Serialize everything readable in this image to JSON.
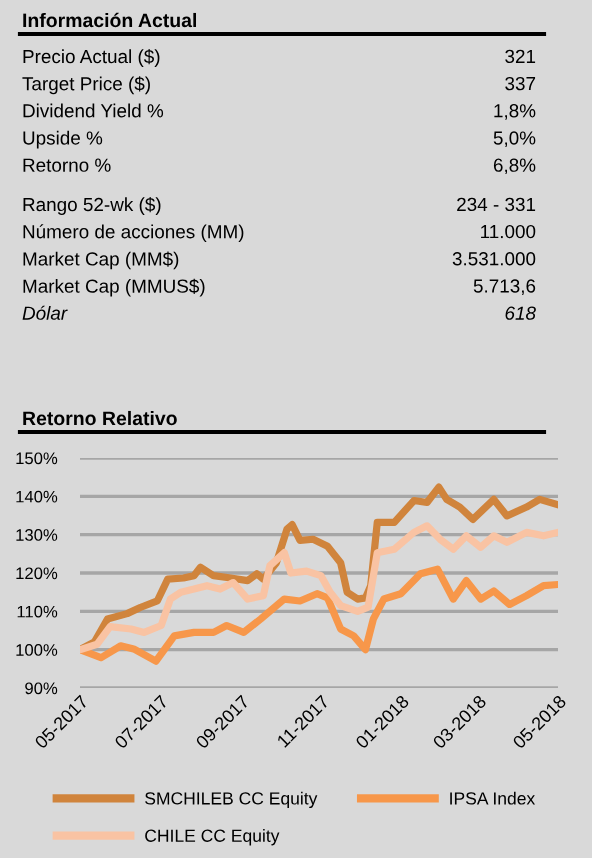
{
  "chart_data": [
    {
      "type": "other",
      "title": "Información Actual",
      "annotations": [
        "Precio Actual ($)",
        "321",
        "Target Price ($)",
        "337",
        "Dividend Yield %",
        "1,8%",
        "Upside %",
        "5,0%",
        "Retorno %",
        "6,8%",
        "Rango 52-wk ($)",
        "234 - 331",
        "Número de acciones (MM)",
        "11.000",
        "Market Cap (MM$)",
        "3.531.000",
        "Market Cap (MMUS$)",
        "5.713,6",
        "Dólar",
        "618"
      ]
    },
    {
      "type": "line",
      "title": "Retorno Relativo",
      "ylim": [
        90,
        150
      ],
      "yticks": [
        {
          "value": 90,
          "label": "90%"
        },
        {
          "value": 100,
          "label": "100%"
        },
        {
          "value": 110,
          "label": "110%"
        },
        {
          "value": 120,
          "label": "120%"
        },
        {
          "value": 130,
          "label": "130%"
        },
        {
          "value": 140,
          "label": "140%"
        },
        {
          "value": 150,
          "label": "150%"
        }
      ],
      "xlim": [
        "2017-05-01",
        "2018-05-01"
      ],
      "xticks": [
        {
          "value": "2017-05-01",
          "label": "05-2017"
        },
        {
          "value": "2017-07-01",
          "label": "07-2017"
        },
        {
          "value": "2017-09-01",
          "label": "09-2017"
        },
        {
          "value": "2017-11-01",
          "label": "11-2017"
        },
        {
          "value": "2018-01-01",
          "label": "01-2018"
        },
        {
          "value": "2018-03-01",
          "label": "03-2018"
        },
        {
          "value": "2018-05-01",
          "label": "05-2018"
        }
      ],
      "grid": "y",
      "legend": "bottom",
      "marker": "none",
      "line_style": "solid",
      "series": [
        {
          "name": "SMCHILEB CC Equity",
          "color": "#d0843c",
          "x": [
            "2017-05-01",
            "2017-05-12",
            "2017-05-22",
            "2017-06-06",
            "2017-06-16",
            "2017-06-29",
            "2017-07-07",
            "2017-07-19",
            "2017-07-27",
            "2017-08-01",
            "2017-08-11",
            "2017-08-24",
            "2017-09-06",
            "2017-09-13",
            "2017-09-18",
            "2017-09-28",
            "2017-10-06",
            "2017-10-10",
            "2017-10-16",
            "2017-10-26",
            "2017-11-06",
            "2017-11-16",
            "2017-11-21",
            "2017-11-29",
            "2017-12-05",
            "2017-12-09",
            "2017-12-14",
            "2017-12-27",
            "2018-01-11",
            "2018-01-21",
            "2018-01-30",
            "2018-02-05",
            "2018-02-15",
            "2018-02-25",
            "2018-03-13",
            "2018-03-23",
            "2018-04-07",
            "2018-04-17",
            "2018-05-01"
          ],
          "values": [
            100,
            102,
            108,
            109.4,
            111,
            112.7,
            118.4,
            118.7,
            119.3,
            121.5,
            119.3,
            118.7,
            118,
            119.8,
            118.4,
            122.7,
            131.4,
            132.6,
            128.5,
            128.8,
            127,
            122.7,
            115,
            113.2,
            113.5,
            116.7,
            133.2,
            133.2,
            138.9,
            138.4,
            142.4,
            139.2,
            137.2,
            134,
            139.2,
            134.9,
            137.2,
            139.2,
            137.8
          ]
        },
        {
          "name": "IPSA Index",
          "color": "#f7974a",
          "x": [
            "2017-05-01",
            "2017-05-17",
            "2017-06-01",
            "2017-06-11",
            "2017-06-28",
            "2017-07-12",
            "2017-07-27",
            "2017-08-11",
            "2017-08-21",
            "2017-09-03",
            "2017-09-16",
            "2017-10-04",
            "2017-10-16",
            "2017-10-29",
            "2017-11-06",
            "2017-11-16",
            "2017-11-26",
            "2017-12-05",
            "2017-12-11",
            "2017-12-19",
            "2018-01-01",
            "2018-01-16",
            "2018-01-29",
            "2018-02-10",
            "2018-02-20",
            "2018-03-03",
            "2018-03-13",
            "2018-03-25",
            "2018-04-07",
            "2018-04-20",
            "2018-05-01"
          ],
          "values": [
            100,
            97.9,
            101,
            100.2,
            97,
            103.6,
            104.5,
            104.5,
            106.3,
            104.5,
            108,
            113.2,
            112.7,
            114.6,
            113.5,
            105.4,
            103.6,
            100,
            108,
            113.2,
            114.6,
            119.8,
            121,
            113.2,
            118,
            113.2,
            115.3,
            111.8,
            114.1,
            116.7,
            117
          ]
        },
        {
          "name": "CHILE CC Equity",
          "color": "#f9c3a3",
          "x": [
            "2017-05-01",
            "2017-05-14",
            "2017-05-24",
            "2017-06-09",
            "2017-06-19",
            "2017-07-02",
            "2017-07-09",
            "2017-07-17",
            "2017-07-27",
            "2017-08-06",
            "2017-08-16",
            "2017-08-26",
            "2017-09-06",
            "2017-09-18",
            "2017-09-23",
            "2017-10-04",
            "2017-10-09",
            "2017-10-21",
            "2017-11-01",
            "2017-11-08",
            "2017-11-16",
            "2017-11-29",
            "2017-12-07",
            "2017-12-14",
            "2017-12-27",
            "2018-01-11",
            "2018-01-21",
            "2018-01-31",
            "2018-02-10",
            "2018-02-20",
            "2018-03-03",
            "2018-03-13",
            "2018-03-23",
            "2018-04-07",
            "2018-04-20",
            "2018-05-01"
          ],
          "values": [
            100,
            101.4,
            106,
            105.4,
            104.5,
            106.3,
            113.2,
            115,
            115.8,
            116.7,
            115.8,
            117.5,
            113.2,
            114.1,
            121.9,
            125.3,
            120,
            120.5,
            119.3,
            115,
            111.5,
            110,
            111.1,
            125.3,
            126.2,
            130.6,
            132.3,
            128.8,
            126.2,
            129.7,
            126.7,
            129.7,
            128,
            130.6,
            129.7,
            130.6
          ]
        }
      ]
    }
  ]
}
